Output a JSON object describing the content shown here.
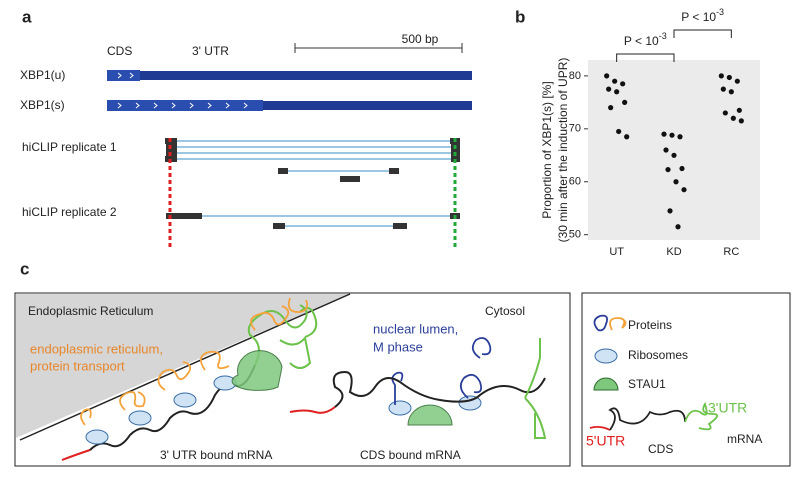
{
  "panel_a": {
    "label": "a",
    "cds": "CDS",
    "utr": "3' UTR",
    "scale": "500 bp",
    "xbp1u": "XBP1(u)",
    "xbp1s": "XBP1(s)",
    "rep1": "hiCLIP replicate 1",
    "rep2": "hiCLIP replicate 2"
  },
  "panel_b_label": "b",
  "chart_data": {
    "type": "strip",
    "ylabel": [
      "Proportion of XBP1(s) [%]",
      "(30 min after the induction of UPR)"
    ],
    "categories": [
      "UT",
      "KD",
      "RC"
    ],
    "values": [
      [
        80,
        79,
        78.5,
        77.5,
        77,
        75,
        74,
        69.5,
        68.5
      ],
      [
        69,
        68.8,
        68.5,
        66,
        65,
        62.5,
        62.3,
        60,
        58.5,
        54.5,
        51.5
      ],
      [
        80,
        79.7,
        79,
        77.5,
        77,
        73.5,
        73,
        72,
        71.5
      ]
    ],
    "color": "#111111",
    "ylim": [
      49,
      83
    ],
    "yticks": [
      50,
      60,
      70,
      80
    ],
    "annotations": [
      {
        "text": "P < 10",
        "sup": "-3"
      },
      {
        "text": "P < 10",
        "sup": "-3"
      }
    ]
  },
  "panel_c": {
    "label": "c",
    "er": "Endoplasmic Reticulum",
    "er_term": [
      "endoplasmic reticulum,",
      "protein transport"
    ],
    "nuc_term": [
      "nuclear lumen,",
      "M phase"
    ],
    "cytosol": "Cytosol",
    "utr_mrna": "3' UTR bound mRNA",
    "cds_mrna": "CDS bound mRNA",
    "legend": {
      "proteins": "Proteins",
      "ribosomes": "Ribosomes",
      "stau1": "STAU1",
      "utr3": "3'UTR",
      "utr5": "5'UTR",
      "cds": "CDS",
      "mrna": "mRNA"
    }
  }
}
